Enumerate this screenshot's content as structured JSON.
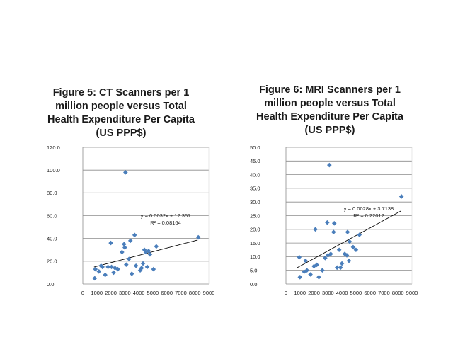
{
  "colors": {
    "marker": "#4a7ebb",
    "grid": "#8c8c8c",
    "axis": "#8c8c8c",
    "trendline": "#000000",
    "text": "#222222"
  },
  "chart_data": [
    {
      "type": "scatter",
      "title_lines": [
        "Figure 5: CT Scanners per 1",
        "million people versus Total",
        "Health Expenditure Per Capita",
        "(US PPP$)"
      ],
      "xlabel": "",
      "ylabel": "",
      "xlim": [
        0,
        9000
      ],
      "ylim": [
        0,
        120
      ],
      "x_ticks": [
        0,
        1000,
        2000,
        3000,
        4000,
        5000,
        6000,
        7000,
        8000,
        9000
      ],
      "x_tick_labels": [
        "0",
        "1000",
        "2000",
        "3000",
        "4000",
        "5000",
        "6000",
        "7000",
        "8000",
        "9000"
      ],
      "y_ticks": [
        0,
        20,
        40,
        60,
        80,
        100,
        120
      ],
      "y_tick_labels": [
        "0.0",
        "20.0",
        "40.0",
        "60.0",
        "80.0",
        "100.0",
        "120.0"
      ],
      "grid": true,
      "marker_shape": "diamond",
      "points": [
        {
          "x": 850,
          "y": 5
        },
        {
          "x": 900,
          "y": 13
        },
        {
          "x": 1150,
          "y": 11
        },
        {
          "x": 1300,
          "y": 16
        },
        {
          "x": 1400,
          "y": 15
        },
        {
          "x": 1600,
          "y": 8
        },
        {
          "x": 1800,
          "y": 15
        },
        {
          "x": 2000,
          "y": 36
        },
        {
          "x": 2050,
          "y": 15
        },
        {
          "x": 2200,
          "y": 10
        },
        {
          "x": 2300,
          "y": 14
        },
        {
          "x": 2500,
          "y": 13
        },
        {
          "x": 2800,
          "y": 28
        },
        {
          "x": 2950,
          "y": 35
        },
        {
          "x": 3000,
          "y": 32
        },
        {
          "x": 3050,
          "y": 98
        },
        {
          "x": 3100,
          "y": 17
        },
        {
          "x": 3300,
          "y": 22
        },
        {
          "x": 3400,
          "y": 38
        },
        {
          "x": 3500,
          "y": 9
        },
        {
          "x": 3700,
          "y": 43
        },
        {
          "x": 3800,
          "y": 16
        },
        {
          "x": 4100,
          "y": 12
        },
        {
          "x": 4200,
          "y": 14
        },
        {
          "x": 4300,
          "y": 18
        },
        {
          "x": 4400,
          "y": 30
        },
        {
          "x": 4500,
          "y": 28
        },
        {
          "x": 4600,
          "y": 15
        },
        {
          "x": 4700,
          "y": 29
        },
        {
          "x": 4800,
          "y": 26
        },
        {
          "x": 5050,
          "y": 13
        },
        {
          "x": 5250,
          "y": 33
        },
        {
          "x": 8250,
          "y": 41
        }
      ],
      "trendline": {
        "slope": 0.0032,
        "intercept": 12.361,
        "x_range": [
          800,
          8200
        ],
        "equation": "y = 0.0032x + 12.361",
        "r_squared": "R² = 0.08164"
      }
    },
    {
      "type": "scatter",
      "title_lines": [
        "Figure 6: MRI Scanners per 1",
        "million people versus Total",
        "Health Expenditure Per Capita",
        "(US PPP$)"
      ],
      "xlabel": "",
      "ylabel": "",
      "xlim": [
        0,
        9000
      ],
      "ylim": [
        0,
        50
      ],
      "x_ticks": [
        0,
        1000,
        2000,
        3000,
        4000,
        5000,
        6000,
        7000,
        8000,
        9000
      ],
      "x_tick_labels": [
        "0",
        "1000",
        "2000",
        "3000",
        "4000",
        "5000",
        "6000",
        "7000",
        "8000",
        "9000"
      ],
      "y_ticks": [
        0,
        5,
        10,
        15,
        20,
        25,
        30,
        35,
        40,
        45,
        50
      ],
      "y_tick_labels": [
        "0.0",
        "5.0",
        "10.0",
        "15.0",
        "20.0",
        "25.0",
        "30.0",
        "35.0",
        "40.0",
        "45.0",
        "50.0"
      ],
      "grid": true,
      "marker_shape": "diamond",
      "points": [
        {
          "x": 950,
          "y": 9.8
        },
        {
          "x": 1000,
          "y": 2.5
        },
        {
          "x": 1300,
          "y": 4.5
        },
        {
          "x": 1400,
          "y": 8.5
        },
        {
          "x": 1500,
          "y": 5
        },
        {
          "x": 1750,
          "y": 3.5
        },
        {
          "x": 2000,
          "y": 6.5
        },
        {
          "x": 2100,
          "y": 20
        },
        {
          "x": 2200,
          "y": 7
        },
        {
          "x": 2350,
          "y": 2.5
        },
        {
          "x": 2600,
          "y": 5
        },
        {
          "x": 2800,
          "y": 9.5
        },
        {
          "x": 2950,
          "y": 22.5
        },
        {
          "x": 3000,
          "y": 10.5
        },
        {
          "x": 3100,
          "y": 43.5
        },
        {
          "x": 3200,
          "y": 11
        },
        {
          "x": 3400,
          "y": 19
        },
        {
          "x": 3450,
          "y": 22.2
        },
        {
          "x": 3650,
          "y": 6
        },
        {
          "x": 3800,
          "y": 12.5
        },
        {
          "x": 3900,
          "y": 6
        },
        {
          "x": 4000,
          "y": 7.5
        },
        {
          "x": 4200,
          "y": 11
        },
        {
          "x": 4350,
          "y": 10.5
        },
        {
          "x": 4400,
          "y": 19
        },
        {
          "x": 4500,
          "y": 8.5
        },
        {
          "x": 4550,
          "y": 15.5
        },
        {
          "x": 4800,
          "y": 13.5
        },
        {
          "x": 5000,
          "y": 12.5
        },
        {
          "x": 5250,
          "y": 18
        },
        {
          "x": 8250,
          "y": 32
        }
      ],
      "trendline": {
        "slope": 0.0028,
        "intercept": 3.7138,
        "x_range": [
          800,
          8200
        ],
        "equation": "y = 0.0028x + 3.7138",
        "r_squared": "R² = 0.22012"
      }
    }
  ]
}
